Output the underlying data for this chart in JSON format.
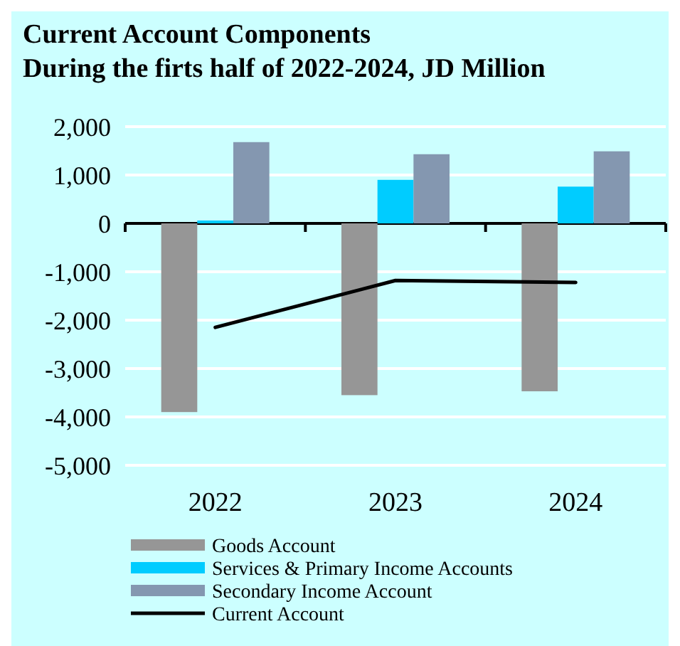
{
  "chart_data": {
    "type": "bar",
    "title": "Current Account Components\nDuring the firts half of 2022-2024, JD Million",
    "categories": [
      "2022",
      "2023",
      "2024"
    ],
    "series": [
      {
        "name": "Goods Account",
        "color": "#969696",
        "values": [
          -3900,
          -3550,
          -3470
        ]
      },
      {
        "name": "Services & Primary Income Accounts",
        "color": "#00ccff",
        "values": [
          60,
          900,
          760
        ]
      },
      {
        "name": "Secondary Income Account",
        "color": "#8497b0",
        "values": [
          1680,
          1430,
          1490
        ]
      },
      {
        "name": "Current Account",
        "type": "line",
        "color": "#000000",
        "values": [
          -2150,
          -1180,
          -1220
        ]
      }
    ],
    "ylim": [
      -5000,
      2000
    ],
    "yticks": [
      {
        "value": -5000,
        "label": "-5,000"
      },
      {
        "value": -4000,
        "label": "-4,000"
      },
      {
        "value": -3000,
        "label": "-3,000"
      },
      {
        "value": -2000,
        "label": "-2,000"
      },
      {
        "value": -1000,
        "label": "-1,000"
      },
      0,
      {
        "value": 1000,
        "label": "1,000"
      },
      {
        "value": 2000,
        "label": "2,000"
      }
    ],
    "grid": "y",
    "legend": "bottom"
  }
}
